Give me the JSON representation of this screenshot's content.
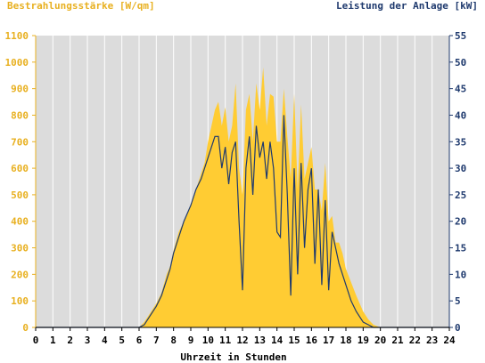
{
  "chart_data": {
    "type": "area",
    "left_axis_label": "Bestrahlungsstärke [W/qm]",
    "right_axis_label": "Leistung der Anlage [kW]",
    "xlabel": "Uhrzeit in Stunden",
    "x_ticks": [
      0,
      1,
      2,
      3,
      4,
      5,
      6,
      7,
      8,
      9,
      10,
      11,
      12,
      13,
      14,
      15,
      16,
      17,
      18,
      19,
      20,
      21,
      22,
      23,
      24
    ],
    "y_left_ticks": [
      0,
      100,
      200,
      300,
      400,
      500,
      600,
      700,
      800,
      900,
      1000,
      1100
    ],
    "y_right_ticks": [
      0,
      5,
      10,
      15,
      20,
      25,
      30,
      35,
      40,
      45,
      50,
      55
    ],
    "xlim": [
      0,
      24
    ],
    "ylim_left": [
      0,
      1100
    ],
    "ylim_right": [
      0,
      55
    ],
    "grid": "vertical gridlines at each hour",
    "colors": {
      "plot_bg": "#dcdcdc",
      "irradiance_fill": "#ffcc33",
      "power_line": "#1f3a6e",
      "left_axis_text": "#e8b020",
      "right_axis_text": "#1f3a6e",
      "grid": "#ffffff"
    },
    "series": [
      {
        "axis": "left",
        "style": "area",
        "x": [
          0,
          6,
          6.3,
          6.6,
          7,
          7.3,
          7.6,
          7.8,
          8,
          8.3,
          8.6,
          9,
          9.3,
          9.6,
          9.8,
          10,
          10.2,
          10.4,
          10.6,
          10.8,
          11,
          11.2,
          11.4,
          11.6,
          11.8,
          12,
          12.2,
          12.4,
          12.6,
          12.8,
          13,
          13.2,
          13.4,
          13.6,
          13.8,
          14,
          14.2,
          14.4,
          14.6,
          14.8,
          15,
          15.2,
          15.4,
          15.6,
          15.8,
          16,
          16.2,
          16.4,
          16.6,
          16.8,
          17,
          17.2,
          17.4,
          17.6,
          17.8,
          18,
          18.3,
          18.6,
          19,
          19.3,
          19.6,
          20,
          24
        ],
        "values": [
          0,
          0,
          20,
          50,
          90,
          130,
          200,
          230,
          290,
          360,
          400,
          460,
          520,
          580,
          620,
          700,
          760,
          820,
          850,
          760,
          830,
          700,
          760,
          920,
          600,
          500,
          820,
          880,
          700,
          920,
          820,
          980,
          760,
          880,
          870,
          700,
          700,
          900,
          720,
          560,
          880,
          520,
          840,
          560,
          620,
          680,
          520,
          520,
          440,
          620,
          400,
          420,
          320,
          320,
          280,
          220,
          170,
          120,
          60,
          30,
          10,
          0,
          0
        ]
      },
      {
        "axis": "right",
        "style": "line",
        "x": [
          0,
          6,
          6.3,
          6.6,
          7,
          7.3,
          7.6,
          7.8,
          8,
          8.3,
          8.6,
          9,
          9.3,
          9.6,
          9.8,
          10,
          10.2,
          10.4,
          10.6,
          10.8,
          11,
          11.2,
          11.4,
          11.6,
          11.8,
          12,
          12.2,
          12.4,
          12.6,
          12.8,
          13,
          13.2,
          13.4,
          13.6,
          13.8,
          14,
          14.2,
          14.4,
          14.6,
          14.8,
          15,
          15.2,
          15.4,
          15.6,
          15.8,
          16,
          16.2,
          16.4,
          16.6,
          16.8,
          17,
          17.2,
          17.4,
          17.6,
          17.8,
          18,
          18.3,
          18.6,
          19,
          19.3,
          19.6,
          20,
          24
        ],
        "values": [
          0,
          0,
          0.5,
          2,
          4,
          6,
          9,
          11,
          14,
          17,
          20,
          23,
          26,
          28,
          30,
          32,
          34,
          36,
          36,
          30,
          34,
          27,
          33,
          35,
          20,
          7,
          30,
          36,
          25,
          38,
          32,
          35,
          28,
          35,
          30,
          18,
          17,
          40,
          25,
          6,
          30,
          10,
          31,
          15,
          26,
          30,
          12,
          26,
          8,
          24,
          7,
          18,
          15,
          12,
          10,
          8,
          5,
          3,
          1,
          0.5,
          0,
          0,
          0
        ]
      }
    ]
  }
}
